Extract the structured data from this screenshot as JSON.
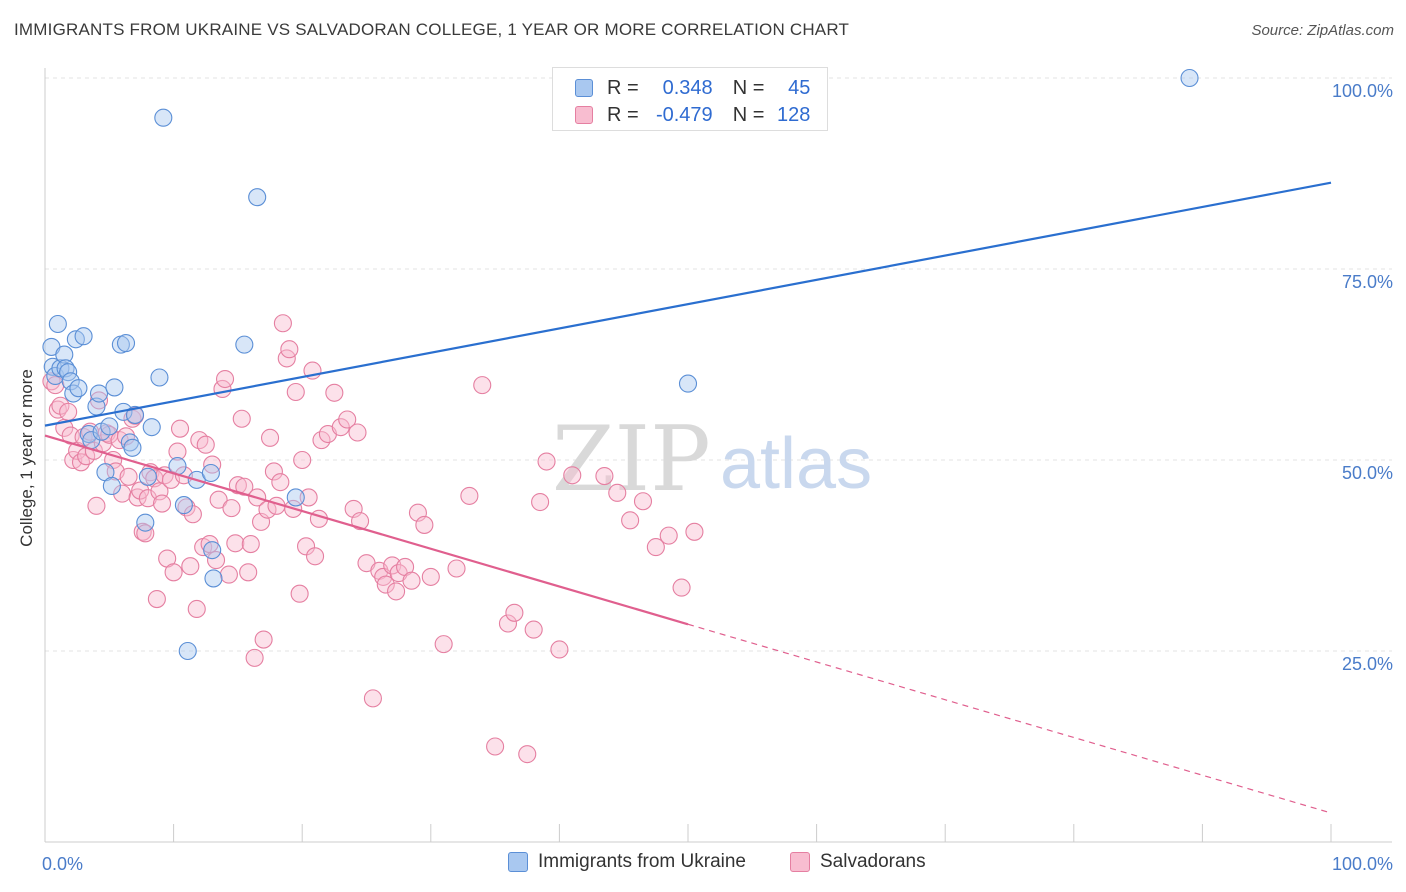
{
  "title": "IMMIGRANTS FROM UKRAINE VS SALVADORAN COLLEGE, 1 YEAR OR MORE CORRELATION CHART",
  "source": "Source: ZipAtlas.com",
  "watermark": {
    "zip": "ZIP",
    "atlas": "atlas"
  },
  "legend": {
    "r_label": "R =",
    "n_label": "N =",
    "rows": [
      {
        "r": "0.348",
        "n": "45",
        "color": "#a9c8f0",
        "border": "#5b8fd6"
      },
      {
        "r": "-0.479",
        "n": "128",
        "color": "#f8bdd0",
        "border": "#e57fa1"
      }
    ]
  },
  "chart_data": {
    "type": "scatter",
    "title": "IMMIGRANTS FROM UKRAINE VS SALVADORAN COLLEGE, 1 YEAR OR MORE CORRELATION CHART",
    "xlabel": "",
    "ylabel": "College, 1 year or more",
    "xlim": [
      0,
      100
    ],
    "ylim": [
      0,
      100
    ],
    "x_tick_labels": [
      "0.0%",
      "100.0%"
    ],
    "y_ticks": [
      25,
      50,
      75,
      100
    ],
    "y_tick_labels": [
      "25.0%",
      "50.0%",
      "75.0%",
      "100.0%"
    ],
    "grid": true,
    "series": [
      {
        "name": "Immigrants from Ukraine",
        "color": "#a9c8f0",
        "edge": "#5b8fd6",
        "line_color": "#2a6fcf",
        "trend": {
          "x0": 0,
          "y0": 54.5,
          "x1": 100,
          "y1": 86.3
        },
        "points": [
          [
            0.5,
            64.8
          ],
          [
            0.6,
            62.2
          ],
          [
            0.8,
            61.0
          ],
          [
            1.0,
            67.8
          ],
          [
            1.2,
            62.0
          ],
          [
            1.5,
            63.8
          ],
          [
            1.6,
            62.0
          ],
          [
            1.8,
            61.5
          ],
          [
            2.0,
            60.3
          ],
          [
            2.2,
            58.7
          ],
          [
            2.4,
            65.8
          ],
          [
            2.6,
            59.4
          ],
          [
            3.0,
            66.2
          ],
          [
            3.4,
            53.4
          ],
          [
            3.6,
            52.6
          ],
          [
            4.0,
            57.0
          ],
          [
            4.2,
            58.7
          ],
          [
            4.4,
            53.7
          ],
          [
            4.7,
            48.4
          ],
          [
            5.0,
            54.4
          ],
          [
            5.2,
            46.6
          ],
          [
            5.4,
            59.5
          ],
          [
            5.9,
            65.1
          ],
          [
            6.1,
            56.3
          ],
          [
            6.3,
            65.3
          ],
          [
            6.6,
            52.3
          ],
          [
            6.8,
            51.6
          ],
          [
            7.0,
            55.9
          ],
          [
            7.8,
            41.8
          ],
          [
            8.0,
            47.8
          ],
          [
            8.3,
            54.3
          ],
          [
            8.9,
            60.8
          ],
          [
            9.2,
            94.8
          ],
          [
            10.3,
            49.2
          ],
          [
            10.8,
            44.1
          ],
          [
            11.1,
            25.0
          ],
          [
            11.8,
            47.4
          ],
          [
            12.9,
            48.3
          ],
          [
            13.0,
            38.2
          ],
          [
            13.1,
            34.5
          ],
          [
            15.5,
            65.1
          ],
          [
            16.5,
            84.4
          ],
          [
            19.5,
            45.1
          ],
          [
            50.0,
            60.0
          ],
          [
            89.0,
            100.0
          ]
        ]
      },
      {
        "name": "Salvadorans",
        "color": "#f8bdd0",
        "edge": "#e57fa1",
        "line_color": "#e05f8e",
        "trend": {
          "x0": 0,
          "y0": 53.2,
          "x1": 50,
          "y1": 28.5,
          "dash_x1": 100,
          "dash_y1": 3.8
        },
        "points": [
          [
            0.5,
            60.3
          ],
          [
            0.8,
            59.8
          ],
          [
            1.0,
            56.6
          ],
          [
            1.2,
            57.1
          ],
          [
            1.5,
            54.2
          ],
          [
            1.8,
            56.3
          ],
          [
            2.0,
            53.2
          ],
          [
            2.2,
            50.0
          ],
          [
            2.5,
            51.2
          ],
          [
            2.8,
            49.7
          ],
          [
            3.0,
            53.0
          ],
          [
            3.2,
            50.5
          ],
          [
            3.5,
            53.7
          ],
          [
            3.8,
            51.2
          ],
          [
            4.0,
            44.0
          ],
          [
            4.2,
            57.8
          ],
          [
            4.5,
            52.2
          ],
          [
            4.8,
            53.5
          ],
          [
            5.0,
            53.3
          ],
          [
            5.3,
            50.0
          ],
          [
            5.5,
            48.5
          ],
          [
            5.8,
            52.6
          ],
          [
            6.0,
            45.6
          ],
          [
            6.3,
            53.1
          ],
          [
            6.5,
            47.8
          ],
          [
            6.8,
            55.4
          ],
          [
            7.0,
            55.8
          ],
          [
            7.2,
            45.1
          ],
          [
            7.4,
            46.0
          ],
          [
            7.6,
            40.6
          ],
          [
            7.8,
            40.4
          ],
          [
            8.0,
            45.0
          ],
          [
            8.2,
            48.4
          ],
          [
            8.5,
            47.6
          ],
          [
            8.7,
            31.8
          ],
          [
            8.9,
            45.9
          ],
          [
            9.1,
            44.3
          ],
          [
            9.3,
            48.0
          ],
          [
            9.5,
            37.1
          ],
          [
            9.8,
            47.4
          ],
          [
            10.0,
            35.3
          ],
          [
            10.3,
            51.1
          ],
          [
            10.5,
            54.1
          ],
          [
            10.8,
            48.0
          ],
          [
            11.0,
            43.8
          ],
          [
            11.3,
            36.1
          ],
          [
            11.5,
            42.9
          ],
          [
            11.8,
            30.5
          ],
          [
            12.0,
            52.6
          ],
          [
            12.3,
            38.6
          ],
          [
            12.5,
            52.0
          ],
          [
            12.8,
            39.0
          ],
          [
            13.0,
            49.4
          ],
          [
            13.3,
            36.9
          ],
          [
            13.5,
            44.8
          ],
          [
            13.8,
            59.3
          ],
          [
            14.0,
            60.6
          ],
          [
            14.3,
            35.0
          ],
          [
            14.5,
            43.7
          ],
          [
            14.8,
            39.1
          ],
          [
            15.0,
            46.7
          ],
          [
            15.3,
            55.4
          ],
          [
            15.5,
            46.5
          ],
          [
            15.8,
            35.3
          ],
          [
            16.0,
            39.0
          ],
          [
            16.3,
            24.1
          ],
          [
            16.5,
            45.1
          ],
          [
            16.8,
            41.9
          ],
          [
            17.0,
            26.5
          ],
          [
            17.3,
            43.5
          ],
          [
            17.5,
            52.9
          ],
          [
            17.8,
            48.5
          ],
          [
            18.0,
            44.0
          ],
          [
            18.3,
            47.1
          ],
          [
            18.5,
            67.9
          ],
          [
            18.8,
            63.3
          ],
          [
            19.0,
            64.5
          ],
          [
            19.3,
            43.6
          ],
          [
            19.5,
            58.9
          ],
          [
            19.8,
            32.5
          ],
          [
            20.0,
            50.0
          ],
          [
            20.3,
            38.7
          ],
          [
            20.5,
            45.1
          ],
          [
            20.8,
            61.7
          ],
          [
            21.0,
            37.4
          ],
          [
            21.3,
            42.3
          ],
          [
            21.5,
            52.6
          ],
          [
            22.0,
            53.4
          ],
          [
            22.5,
            58.8
          ],
          [
            23.0,
            54.3
          ],
          [
            23.5,
            55.3
          ],
          [
            24.0,
            43.6
          ],
          [
            24.3,
            53.6
          ],
          [
            24.5,
            42.0
          ],
          [
            25.0,
            36.5
          ],
          [
            25.5,
            18.8
          ],
          [
            26.0,
            35.5
          ],
          [
            26.3,
            34.7
          ],
          [
            26.5,
            33.7
          ],
          [
            27.0,
            36.2
          ],
          [
            27.3,
            32.8
          ],
          [
            27.5,
            35.2
          ],
          [
            28.0,
            36.0
          ],
          [
            28.5,
            34.2
          ],
          [
            29.0,
            43.1
          ],
          [
            29.5,
            41.5
          ],
          [
            30.0,
            34.7
          ],
          [
            31.0,
            25.9
          ],
          [
            32.0,
            35.8
          ],
          [
            33.0,
            45.3
          ],
          [
            34.0,
            59.8
          ],
          [
            35.0,
            12.5
          ],
          [
            36.0,
            28.6
          ],
          [
            36.5,
            30.0
          ],
          [
            37.5,
            11.5
          ],
          [
            38.0,
            27.8
          ],
          [
            38.5,
            44.5
          ],
          [
            39.0,
            49.8
          ],
          [
            40.0,
            25.2
          ],
          [
            41.0,
            48.0
          ],
          [
            43.5,
            47.9
          ],
          [
            44.5,
            45.7
          ],
          [
            45.5,
            42.1
          ],
          [
            46.5,
            44.6
          ],
          [
            47.5,
            38.6
          ],
          [
            48.5,
            40.1
          ],
          [
            49.5,
            33.3
          ],
          [
            50.5,
            40.6
          ]
        ]
      }
    ]
  },
  "bottom_legend": [
    {
      "label": "Immigrants from Ukraine",
      "color": "#a9c8f0",
      "border": "#5b8fd6"
    },
    {
      "label": "Salvadorans",
      "color": "#f8bdd0",
      "border": "#e57fa1"
    }
  ]
}
